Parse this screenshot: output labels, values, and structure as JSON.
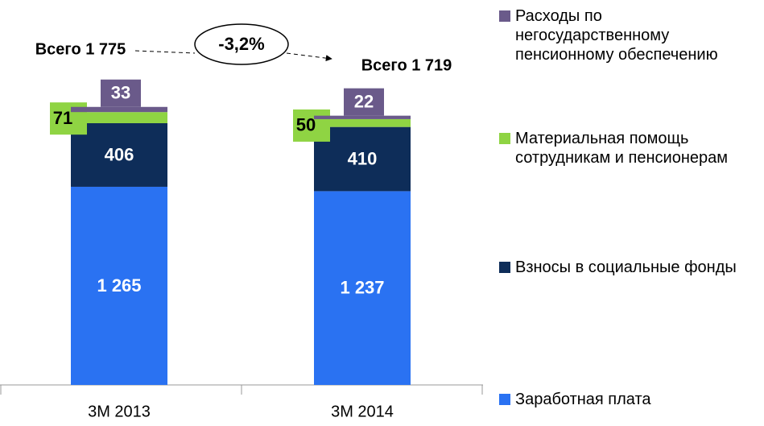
{
  "chart_data": {
    "type": "stacked_bar",
    "categories": [
      "3M 2013",
      "3M 2014"
    ],
    "series": [
      {
        "name": "Заработная плата",
        "color": "#2a72f2",
        "values": [
          1265,
          1237
        ],
        "value_labels": [
          "1 265",
          "1 237"
        ]
      },
      {
        "name": "Взносы в социальные фонды",
        "color": "#0e2d59",
        "values": [
          406,
          410
        ]
      },
      {
        "name": "Материальная помощь сотрудникам и пенсионерам",
        "color": "#8fd443",
        "values": [
          71,
          50
        ]
      },
      {
        "name": "Расходы по негосударственному пенсионному обеспечению",
        "color": "#6a5a8a",
        "values": [
          33,
          22
        ]
      }
    ],
    "ylim": [
      0,
      2000
    ],
    "annotations": [
      "Всего 1 775",
      "-3,2%",
      "Всего 1 719"
    ]
  }
}
